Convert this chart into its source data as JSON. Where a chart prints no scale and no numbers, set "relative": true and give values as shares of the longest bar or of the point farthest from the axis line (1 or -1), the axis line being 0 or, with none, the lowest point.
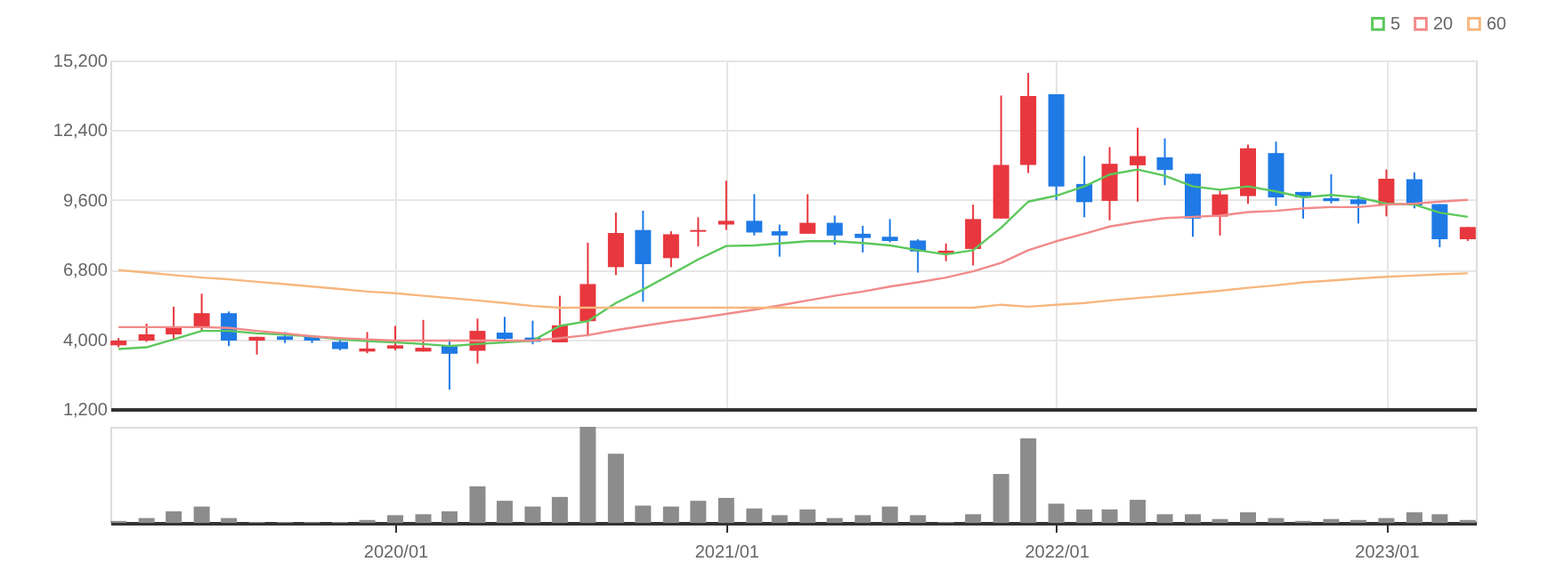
{
  "chart_data": [
    {
      "type": "candlestick",
      "x": [
        "2019-03",
        "2019-04",
        "2019-05",
        "2019-06",
        "2019-07",
        "2019-08",
        "2019-09",
        "2019-10",
        "2019-11",
        "2019-12",
        "2020-01",
        "2020-02",
        "2020-03",
        "2020-04",
        "2020-05",
        "2020-06",
        "2020-07",
        "2020-08",
        "2020-09",
        "2020-10",
        "2020-11",
        "2020-12",
        "2021-01",
        "2021-02",
        "2021-03",
        "2021-04",
        "2021-05",
        "2021-06",
        "2021-07",
        "2021-08",
        "2021-09",
        "2021-10",
        "2021-11",
        "2021-12",
        "2022-01",
        "2022-02",
        "2022-03",
        "2022-04",
        "2022-05",
        "2022-06",
        "2022-07",
        "2022-08",
        "2022-09",
        "2022-10",
        "2022-11",
        "2022-12",
        "2023-01",
        "2023-02",
        "2023-03",
        "2023-04"
      ],
      "ohlc": [
        [
          3760,
          4050,
          3680,
          3950
        ],
        [
          3950,
          4630,
          3900,
          4200
        ],
        [
          4200,
          5310,
          4000,
          4490
        ],
        [
          4490,
          5830,
          4340,
          5050
        ],
        [
          5050,
          5120,
          3730,
          3950
        ],
        [
          3950,
          4100,
          3390,
          4100
        ],
        [
          4120,
          4290,
          3850,
          3980
        ],
        [
          4100,
          4170,
          3850,
          3950
        ],
        [
          3900,
          3980,
          3560,
          3610
        ],
        [
          3510,
          4290,
          3440,
          3630
        ],
        [
          3630,
          4540,
          3560,
          3760
        ],
        [
          3510,
          4780,
          3510,
          3660
        ],
        [
          3760,
          4000,
          1980,
          3420
        ],
        [
          3540,
          4830,
          3030,
          4340
        ],
        [
          4270,
          4900,
          3950,
          4020
        ],
        [
          4070,
          4750,
          3800,
          3900
        ],
        [
          3880,
          5750,
          3880,
          4560
        ],
        [
          4730,
          7880,
          4120,
          6220
        ],
        [
          6900,
          9090,
          6580,
          8270
        ],
        [
          8390,
          9170,
          5510,
          7020
        ],
        [
          7260,
          8340,
          6900,
          8220
        ],
        [
          8320,
          8900,
          7730,
          8390
        ],
        [
          8610,
          10370,
          8390,
          8760
        ],
        [
          8760,
          9830,
          8170,
          8290
        ],
        [
          8340,
          8610,
          7320,
          8170
        ],
        [
          8240,
          9830,
          8240,
          8680
        ],
        [
          8680,
          8970,
          7800,
          8170
        ],
        [
          8240,
          8560,
          7490,
          8070
        ],
        [
          8120,
          8830,
          7900,
          7950
        ],
        [
          7970,
          8020,
          6680,
          7530
        ],
        [
          7460,
          7850,
          7140,
          7560
        ],
        [
          7630,
          9410,
          6970,
          8830
        ],
        [
          8850,
          13790,
          8850,
          11000
        ],
        [
          11000,
          14700,
          10680,
          13770
        ],
        [
          13840,
          13840,
          9580,
          10140
        ],
        [
          10240,
          11360,
          8900,
          9510
        ],
        [
          9560,
          11720,
          8780,
          11050
        ],
        [
          10990,
          12500,
          9530,
          11360
        ],
        [
          11310,
          12070,
          10190,
          10800
        ],
        [
          10650,
          10650,
          8120,
          8850
        ],
        [
          8930,
          9970,
          8170,
          9820
        ],
        [
          9750,
          11820,
          9450,
          11670
        ],
        [
          11480,
          11940,
          9360,
          9700
        ],
        [
          9920,
          9920,
          8850,
          9700
        ],
        [
          9670,
          10630,
          9460,
          9550
        ],
        [
          9620,
          9770,
          8650,
          9430
        ],
        [
          9380,
          10820,
          8940,
          10450
        ],
        [
          10430,
          10700,
          9260,
          9380
        ],
        [
          9430,
          9430,
          7700,
          8020
        ],
        [
          8020,
          8510,
          7950,
          8510
        ]
      ],
      "colors": [
        "#e8373e",
        "#e8373e",
        "#e8373e",
        "#e8373e",
        "#1f7ae6",
        "#e8373e",
        "#1f7ae6",
        "#1f7ae6",
        "#1f7ae6",
        "#e8373e",
        "#e8373e",
        "#e8373e",
        "#1f7ae6",
        "#e8373e",
        "#1f7ae6",
        "#1f7ae6",
        "#e8373e",
        "#e8373e",
        "#e8373e",
        "#1f7ae6",
        "#e8373e",
        "#e8373e",
        "#e8373e",
        "#1f7ae6",
        "#1f7ae6",
        "#e8373e",
        "#1f7ae6",
        "#1f7ae6",
        "#1f7ae6",
        "#1f7ae6",
        "#e8373e",
        "#e8373e",
        "#e8373e",
        "#e8373e",
        "#1f7ae6",
        "#1f7ae6",
        "#e8373e",
        "#e8373e",
        "#1f7ae6",
        "#1f7ae6",
        "#e8373e",
        "#e8373e",
        "#1f7ae6",
        "#1f7ae6",
        "#1f7ae6",
        "#1f7ae6",
        "#e8373e",
        "#1f7ae6",
        "#1f7ae6",
        "#e8373e"
      ],
      "series": [
        {
          "name": "5",
          "type": "line",
          "color": "#5cc85c",
          "values": [
            3610,
            3680,
            4000,
            4340,
            4340,
            4240,
            4190,
            4120,
            4000,
            3930,
            3880,
            3810,
            3730,
            3810,
            3880,
            3950,
            4540,
            4730,
            5460,
            6000,
            6610,
            7210,
            7750,
            7770,
            7850,
            7940,
            7940,
            7870,
            7770,
            7580,
            7410,
            7580,
            8480,
            9530,
            9770,
            10140,
            10620,
            10820,
            10570,
            10140,
            10010,
            10140,
            9940,
            9700,
            9800,
            9700,
            9450,
            9410,
            9090,
            8920
          ]
        },
        {
          "name": "20",
          "type": "line",
          "color": "#f28a8a",
          "values": [
            4490,
            4490,
            4490,
            4490,
            4460,
            4340,
            4240,
            4120,
            4050,
            4000,
            3950,
            3950,
            3950,
            3950,
            3950,
            3950,
            4050,
            4170,
            4370,
            4540,
            4710,
            4850,
            5020,
            5190,
            5360,
            5560,
            5750,
            5920,
            6120,
            6290,
            6480,
            6730,
            7070,
            7580,
            7940,
            8240,
            8530,
            8720,
            8870,
            8920,
            8970,
            9110,
            9160,
            9260,
            9310,
            9310,
            9410,
            9450,
            9530,
            9600
          ]
        },
        {
          "name": "60",
          "type": "line",
          "color": "#f7b77e",
          "values": [
            6780,
            6680,
            6580,
            6480,
            6410,
            6310,
            6220,
            6120,
            6020,
            5920,
            5850,
            5750,
            5660,
            5560,
            5460,
            5340,
            5270,
            5270,
            5270,
            5270,
            5270,
            5270,
            5270,
            5270,
            5270,
            5270,
            5270,
            5270,
            5270,
            5270,
            5270,
            5270,
            5390,
            5310,
            5390,
            5460,
            5560,
            5660,
            5750,
            5850,
            5950,
            6070,
            6170,
            6290,
            6360,
            6440,
            6510,
            6560,
            6610,
            6650
          ]
        }
      ],
      "xlim": [
        "2019-02-20",
        "2023-04-10"
      ],
      "xticks": [
        {
          "value": "2020-01",
          "label": null
        },
        {
          "value": "2021-01",
          "label": null
        },
        {
          "value": "2022-01",
          "label": null
        },
        {
          "value": "2023-01",
          "label": null
        }
      ],
      "ylim": [
        1200,
        15200
      ],
      "yticks": [
        {
          "value": 1200,
          "label": "1,200"
        },
        {
          "value": 4000,
          "label": "4,000"
        },
        {
          "value": 6800,
          "label": "6,800"
        },
        {
          "value": 9600,
          "label": "9,600"
        },
        {
          "value": 12400,
          "label": "12,400"
        },
        {
          "value": 15200,
          "label": "15,200"
        }
      ],
      "grid": true,
      "legend": "top right",
      "tick_labels": "y"
    },
    {
      "type": "bar",
      "relative": true,
      "color": "#8c8c8c",
      "x": [
        "2019-03",
        "2019-04",
        "2019-05",
        "2019-06",
        "2019-07",
        "2019-08",
        "2019-09",
        "2019-10",
        "2019-11",
        "2019-12",
        "2020-01",
        "2020-02",
        "2020-03",
        "2020-04",
        "2020-05",
        "2020-06",
        "2020-07",
        "2020-08",
        "2020-09",
        "2020-10",
        "2020-11",
        "2020-12",
        "2021-01",
        "2021-02",
        "2021-03",
        "2021-04",
        "2021-05",
        "2021-06",
        "2021-07",
        "2021-08",
        "2021-09",
        "2021-10",
        "2021-11",
        "2021-12",
        "2022-01",
        "2022-02",
        "2022-03",
        "2022-04",
        "2022-05",
        "2022-06",
        "2022-07",
        "2022-08",
        "2022-09",
        "2022-10",
        "2022-11",
        "2022-12",
        "2023-01",
        "2023-02",
        "2023-03",
        "2023-04"
      ],
      "values": [
        0.02,
        0.05,
        0.12,
        0.17,
        0.05,
        0.01,
        0.01,
        0.01,
        0.01,
        0.03,
        0.08,
        0.09,
        0.12,
        0.38,
        0.23,
        0.17,
        0.27,
        1,
        0.72,
        0.18,
        0.17,
        0.23,
        0.26,
        0.15,
        0.08,
        0.14,
        0.05,
        0.08,
        0.17,
        0.08,
        0.01,
        0.09,
        0.51,
        0.88,
        0.2,
        0.14,
        0.14,
        0.24,
        0.09,
        0.09,
        0.04,
        0.11,
        0.05,
        0.02,
        0.04,
        0.03,
        0.05,
        0.11,
        0.09,
        0.03
      ],
      "xlim": [
        "2019-02-20",
        "2023-04-10"
      ],
      "xticks": [
        {
          "value": "2020-01",
          "label": "2020/01"
        },
        {
          "value": "2021-01",
          "label": "2021/01"
        },
        {
          "value": "2022-01",
          "label": "2022/01"
        },
        {
          "value": "2023-01",
          "label": "2023/01"
        }
      ],
      "tick_labels": "x"
    }
  ]
}
